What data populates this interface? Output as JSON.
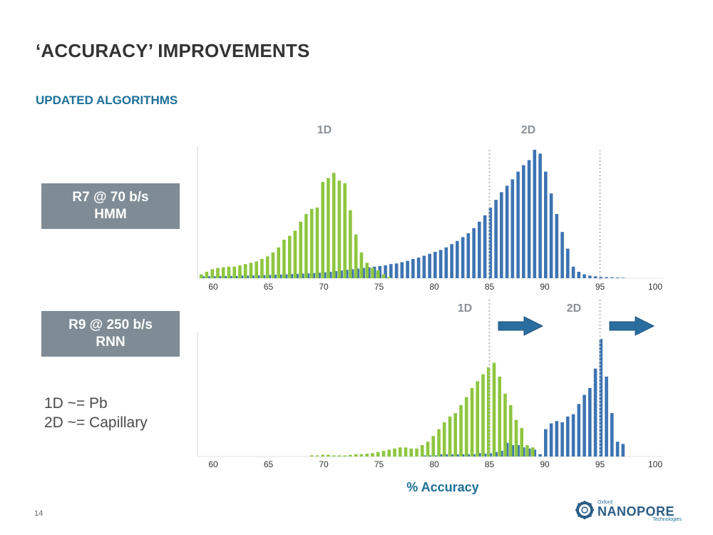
{
  "slide": {
    "title": "‘ACCURACY’ IMPROVEMENTS",
    "subtitle": "UPDATED ALGORITHMS",
    "page_number": "14",
    "labels": [
      {
        "line1": "R7 @ 70 b/s",
        "line2": "HMM"
      },
      {
        "line1": "R9 @ 250 b/s",
        "line2": "RNN"
      }
    ],
    "notes": [
      "1D ~= Pb",
      "2D ~= Capillary"
    ],
    "logo": {
      "top": "Oxford",
      "word": "NANOPORE",
      "bottom": "Technologies"
    }
  },
  "colors": {
    "series_1d": "#8dc63f",
    "series_2d": "#3d74b2",
    "arrow": "#2a6ea0",
    "reference_line": "#bbbbbb"
  },
  "chart_data": [
    {
      "type": "bar",
      "panel": "R7 @ 70 b/s HMM",
      "xlim": [
        58,
        100
      ],
      "xticks": [
        60,
        65,
        70,
        75,
        80,
        85,
        90,
        95,
        100
      ],
      "category_labels": [
        "1D",
        "2D"
      ],
      "reference_lines": [
        85,
        95
      ],
      "series": [
        {
          "name": "1D",
          "x": [
            59,
            59.5,
            60,
            60.5,
            61,
            61.5,
            62,
            62.5,
            63,
            63.5,
            64,
            64.5,
            65,
            65.5,
            66,
            66.5,
            67,
            67.5,
            68,
            68.5,
            69,
            69.5,
            70,
            70.5,
            71,
            71.5,
            72,
            72.5,
            73,
            73.5,
            74,
            74.5,
            75,
            75.5,
            76
          ],
          "values": [
            3,
            5,
            7,
            8,
            8.5,
            9,
            9,
            10,
            11,
            12,
            13,
            15,
            17,
            20,
            24,
            30,
            33,
            37,
            44,
            50,
            54,
            55,
            75,
            78,
            82,
            76,
            74,
            53,
            34,
            20,
            12,
            8,
            6,
            3,
            1
          ]
        },
        {
          "name": "2D",
          "x": [
            59,
            59.5,
            60,
            60.5,
            61,
            61.5,
            62,
            62.5,
            63,
            63.5,
            64,
            64.5,
            65,
            65.5,
            66,
            66.5,
            67,
            67.5,
            68,
            68.5,
            69,
            69.5,
            70,
            70.5,
            71,
            71.5,
            72,
            72.5,
            73,
            73.5,
            74,
            74.5,
            75,
            75.5,
            76,
            76.5,
            77,
            77.5,
            78,
            78.5,
            79,
            79.5,
            80,
            80.5,
            81,
            81.5,
            82,
            82.5,
            83,
            83.5,
            84,
            84.5,
            85,
            85.5,
            86,
            86.5,
            87,
            87.5,
            88,
            88.5,
            89,
            89.5,
            90,
            90.5,
            91,
            91.5,
            92,
            92.5,
            93,
            93.5,
            94,
            94.5,
            95,
            95.5,
            96,
            96.5,
            97
          ],
          "values": [
            1.5,
            1.5,
            1.5,
            1.6,
            1.6,
            1.7,
            1.8,
            2,
            2,
            2.1,
            2.2,
            2.4,
            2.5,
            2.7,
            2.9,
            3,
            3.2,
            3.4,
            3.6,
            3.8,
            4,
            4.3,
            4.6,
            5,
            5.5,
            6,
            6.5,
            7,
            7.5,
            8,
            8.5,
            9,
            9.5,
            10,
            11,
            11.5,
            12.5,
            13.5,
            15,
            16,
            17.5,
            19,
            20.5,
            22,
            24,
            26.5,
            29,
            32,
            35,
            39,
            44,
            49,
            55,
            61,
            67,
            72,
            77,
            83,
            88,
            92,
            100,
            97,
            83,
            66,
            50,
            36,
            23,
            9,
            5,
            3,
            2,
            1.5,
            1,
            0.8,
            0.6,
            0.5,
            0.4
          ]
        }
      ]
    },
    {
      "type": "bar",
      "panel": "R9 @ 250 b/s RNN",
      "xlim": [
        58,
        100
      ],
      "xticks": [
        60,
        65,
        70,
        75,
        80,
        85,
        90,
        95,
        100
      ],
      "xlabel": "% Accuracy",
      "category_labels": [
        "1D",
        "2D"
      ],
      "reference_lines": [
        85,
        95
      ],
      "series": [
        {
          "name": "1D",
          "x": [
            69,
            69.5,
            70,
            70.5,
            71,
            71.5,
            72,
            72.5,
            73,
            73.5,
            74,
            74.5,
            75,
            75.5,
            76,
            76.5,
            77,
            77.5,
            78,
            78.5,
            79,
            79.5,
            80,
            80.5,
            81,
            81.5,
            82,
            82.5,
            83,
            83.5,
            84,
            84.5,
            85,
            85.5,
            86,
            86.5,
            87,
            87.5,
            88,
            88.5,
            89
          ],
          "values": [
            1,
            1,
            1.5,
            1.5,
            1,
            1,
            1,
            1.5,
            2,
            2,
            2.5,
            3,
            4,
            5,
            6,
            7,
            8,
            8,
            7,
            7,
            10,
            13,
            18,
            24,
            30,
            35,
            38,
            45,
            52,
            60,
            66,
            72,
            78,
            82,
            70,
            55,
            45,
            32,
            25,
            10,
            8
          ]
        },
        {
          "name": "2D",
          "x": [
            79,
            79.5,
            80,
            80.5,
            81,
            81.5,
            82,
            82.5,
            83,
            83.5,
            84,
            84.5,
            85,
            85.5,
            86,
            86.5,
            87,
            87.5,
            88,
            88.5,
            89,
            89.5,
            90,
            90.5,
            91,
            91.5,
            92,
            92.5,
            93,
            93.5,
            94,
            94.5,
            95,
            95.5,
            96,
            96.5,
            97
          ],
          "values": [
            1,
            1,
            1,
            2,
            2,
            2,
            2,
            2,
            2,
            2,
            3,
            2.5,
            3,
            4,
            5,
            12,
            10,
            10,
            8,
            7,
            6,
            2,
            24,
            29,
            31,
            30,
            35,
            37,
            46,
            54,
            60,
            77,
            103,
            70,
            38,
            13,
            11
          ]
        }
      ]
    }
  ]
}
